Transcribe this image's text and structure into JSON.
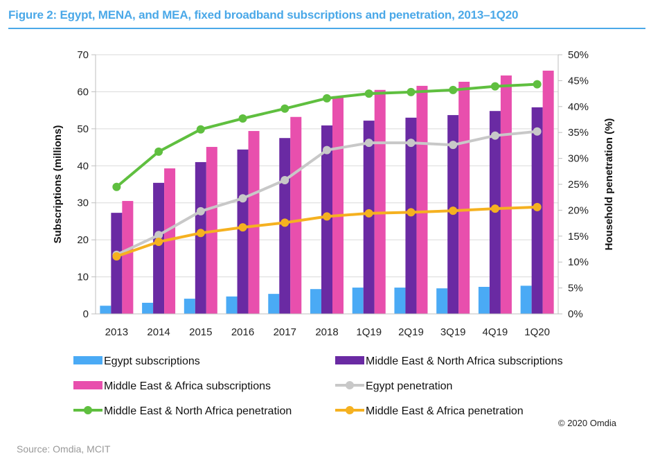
{
  "figure": {
    "title": "Figure 2: Egypt, MENA, and MEA, fixed broadband subscriptions and penetration, 2013–1Q20",
    "copyright": "© 2020 Omdia",
    "source": "Source: Omdia, MCIT"
  },
  "chart_data": {
    "type": "bar",
    "title": "Figure 2: Egypt, MENA, and MEA, fixed broadband subscriptions and penetration, 2013–1Q20",
    "xlabel": "",
    "ylabel": "Subscriptions (millions)",
    "y2label": "Household penetration (%)",
    "ylim": [
      0,
      70
    ],
    "y2lim": [
      0,
      50
    ],
    "yticks": [
      "0",
      "10",
      "20",
      "30",
      "40",
      "50",
      "60",
      "70"
    ],
    "y2ticks": [
      "0%",
      "5%",
      "10%",
      "15%",
      "20%",
      "25%",
      "30%",
      "35%",
      "40%",
      "45%",
      "50%"
    ],
    "grid": true,
    "legend_position": "bottom",
    "categories": [
      "2013",
      "2014",
      "2015",
      "2016",
      "2017",
      "2018",
      "1Q19",
      "2Q19",
      "3Q19",
      "4Q19",
      "1Q20"
    ],
    "series": [
      {
        "name": "Egypt subscriptions",
        "type": "bar",
        "axis": "left",
        "color": "#4aaaf5",
        "values": [
          2.2,
          3.0,
          4.1,
          4.7,
          5.4,
          6.7,
          7.1,
          7.1,
          6.9,
          7.3,
          7.6
        ]
      },
      {
        "name": "Middle East & North Africa subscriptions",
        "type": "bar",
        "axis": "left",
        "color": "#6a2aa3",
        "values": [
          27.3,
          35.4,
          41.0,
          44.4,
          47.5,
          50.9,
          52.2,
          53.0,
          53.7,
          54.8,
          55.8
        ]
      },
      {
        "name": "Middle East & Africa subscriptions",
        "type": "bar",
        "axis": "left",
        "color": "#e84fad",
        "values": [
          30.5,
          39.3,
          45.1,
          49.4,
          53.2,
          58.8,
          60.5,
          61.6,
          62.7,
          64.4,
          65.7
        ]
      },
      {
        "name": "Egypt penetration",
        "type": "line",
        "axis": "right",
        "color": "#c8c8c8",
        "values": [
          11.4,
          15.2,
          19.8,
          22.3,
          25.8,
          31.6,
          33.0,
          33.0,
          32.6,
          34.4,
          35.2
        ]
      },
      {
        "name": "Middle East & North Africa penetration",
        "type": "line",
        "axis": "right",
        "color": "#5fbf3f",
        "values": [
          24.5,
          31.3,
          35.6,
          37.7,
          39.6,
          41.6,
          42.5,
          42.8,
          43.2,
          43.9,
          44.3
        ]
      },
      {
        "name": "Middle East & Africa penetration",
        "type": "line",
        "axis": "right",
        "color": "#f5b120",
        "values": [
          11.1,
          13.9,
          15.6,
          16.7,
          17.6,
          18.8,
          19.4,
          19.6,
          19.9,
          20.3,
          20.6
        ]
      }
    ],
    "legend_order": [
      "Egypt subscriptions",
      "Middle East & North Africa subscriptions",
      "Middle East & Africa subscriptions",
      "Egypt penetration",
      "Middle East & North Africa penetration",
      "Middle East & Africa penetration"
    ]
  }
}
